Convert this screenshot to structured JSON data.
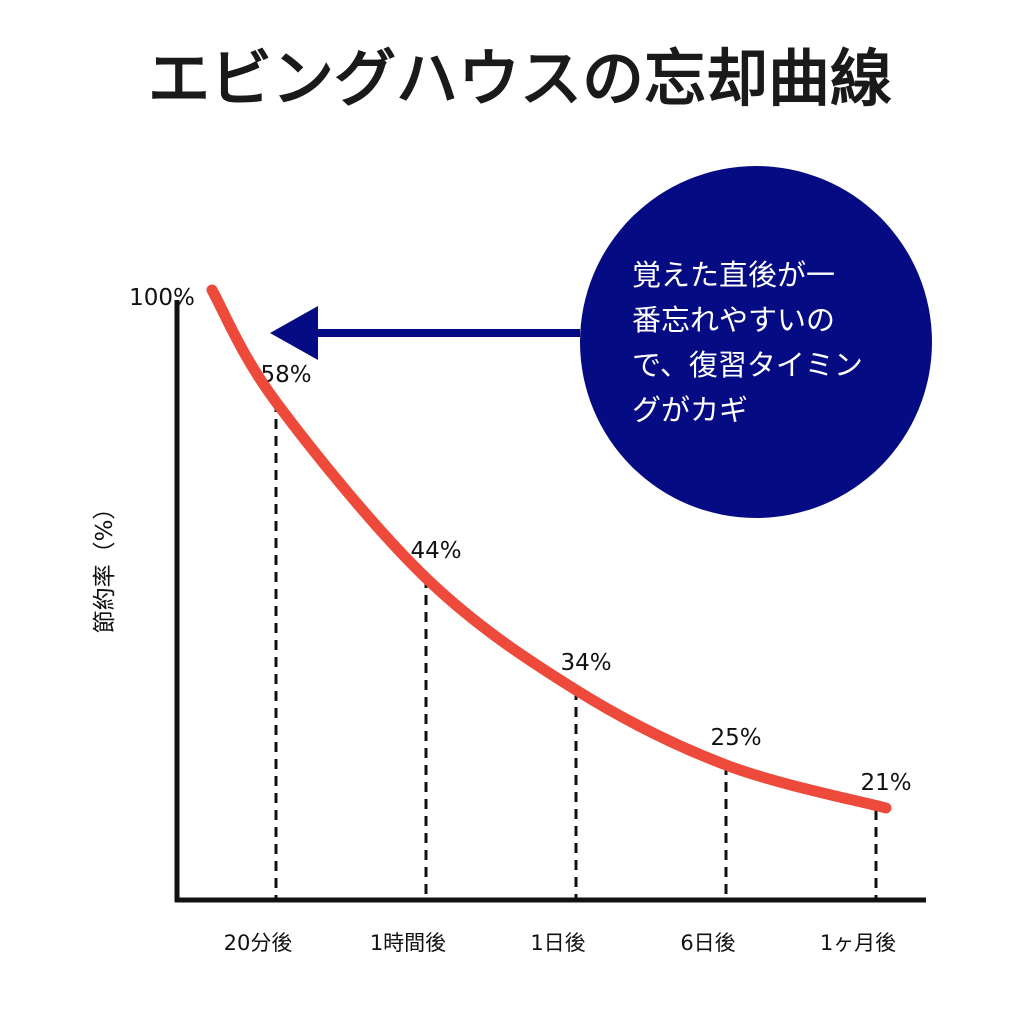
{
  "chart_data": {
    "type": "line",
    "title": "エビングハウスの忘却曲線",
    "ylabel": "節約率（%）",
    "xlabel": "",
    "categories": [
      "20分後",
      "1時間後",
      "1日後",
      "6日後",
      "1ヶ月後"
    ],
    "start_label": "100%",
    "start_value": 100,
    "values": [
      58,
      44,
      34,
      25,
      21
    ],
    "value_labels": [
      "58%",
      "44%",
      "34%",
      "25%",
      "21%"
    ],
    "grid": false,
    "annotation": {
      "lines": [
        "覚えた直後が一",
        "番忘れやすいの",
        "で、復習タイミン",
        "グがカギ"
      ],
      "arrow_target": "start"
    },
    "colors": {
      "curve": "#ee4a3c",
      "bubble": "#050b82",
      "axis": "#111111"
    }
  }
}
